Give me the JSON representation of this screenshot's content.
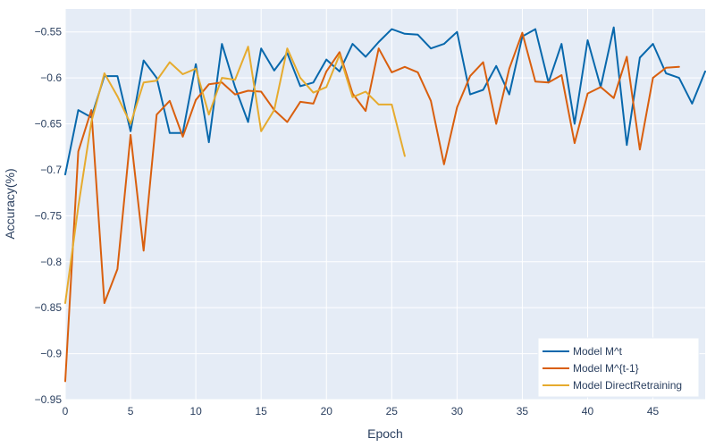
{
  "chart_data": {
    "type": "line",
    "title": "",
    "xlabel": "Epoch",
    "ylabel": "Accuracy(%)",
    "xlim": [
      0,
      49
    ],
    "ylim": [
      -0.95,
      -0.525
    ],
    "xticks": [
      0,
      5,
      10,
      15,
      20,
      25,
      30,
      35,
      40,
      45
    ],
    "yticks": [
      -0.95,
      -0.9,
      -0.85,
      -0.8,
      -0.75,
      -0.7,
      -0.65,
      -0.6,
      -0.55
    ],
    "grid": true,
    "legend_position": "bottom-right",
    "colors": {
      "plot_bg": "#e5ecf6",
      "grid": "#ffffff"
    },
    "series": [
      {
        "name": "Model M^t",
        "color": "#0868ac",
        "x": [
          0,
          1,
          2,
          3,
          4,
          5,
          6,
          7,
          8,
          9,
          10,
          11,
          12,
          13,
          14,
          15,
          16,
          17,
          18,
          19,
          20,
          21,
          22,
          23,
          24,
          25,
          26,
          27,
          28,
          29,
          30,
          31,
          32,
          33,
          34,
          35,
          36,
          37,
          38,
          39,
          40,
          41,
          42,
          43,
          44,
          45,
          46,
          47,
          48,
          49
        ],
        "y": [
          -0.705,
          -0.635,
          -0.643,
          -0.598,
          -0.598,
          -0.658,
          -0.581,
          -0.6,
          -0.66,
          -0.66,
          -0.585,
          -0.67,
          -0.563,
          -0.61,
          -0.648,
          -0.568,
          -0.592,
          -0.573,
          -0.609,
          -0.605,
          -0.58,
          -0.593,
          -0.563,
          -0.577,
          -0.561,
          -0.547,
          -0.552,
          -0.553,
          -0.568,
          -0.563,
          -0.55,
          -0.618,
          -0.613,
          -0.587,
          -0.618,
          -0.555,
          -0.547,
          -0.605,
          -0.563,
          -0.65,
          -0.559,
          -0.61,
          -0.545,
          -0.673,
          -0.578,
          -0.563,
          -0.595,
          -0.6,
          -0.628,
          -0.593
        ]
      },
      {
        "name": "Model M^{t-1}",
        "color": "#d95f0e",
        "x": [
          0,
          1,
          2,
          3,
          4,
          5,
          6,
          7,
          8,
          9,
          10,
          11,
          12,
          13,
          14,
          15,
          16,
          17,
          18,
          19,
          20,
          21,
          22,
          23,
          24,
          25,
          26,
          27,
          28,
          29,
          30,
          31,
          32,
          33,
          34,
          35,
          36,
          37,
          38,
          39,
          40,
          41,
          42,
          43,
          44,
          45,
          46,
          47
        ],
        "y": [
          -0.93,
          -0.68,
          -0.635,
          -0.845,
          -0.808,
          -0.662,
          -0.788,
          -0.64,
          -0.625,
          -0.664,
          -0.624,
          -0.607,
          -0.605,
          -0.618,
          -0.614,
          -0.615,
          -0.635,
          -0.648,
          -0.626,
          -0.628,
          -0.593,
          -0.572,
          -0.617,
          -0.636,
          -0.568,
          -0.594,
          -0.588,
          -0.594,
          -0.625,
          -0.694,
          -0.632,
          -0.598,
          -0.583,
          -0.65,
          -0.59,
          -0.551,
          -0.604,
          -0.605,
          -0.597,
          -0.671,
          -0.617,
          -0.61,
          -0.622,
          -0.577,
          -0.678,
          -0.6,
          -0.589,
          -0.588
        ]
      },
      {
        "name": "Model DirectRetraining",
        "color": "#e6ab2e",
        "x": [
          0,
          1,
          2,
          3,
          4,
          5,
          6,
          7,
          8,
          9,
          10,
          11,
          12,
          13,
          14,
          15,
          16,
          17,
          18,
          19,
          20,
          21,
          22,
          23,
          24,
          25,
          26
        ],
        "y": [
          -0.845,
          -0.74,
          -0.648,
          -0.595,
          -0.62,
          -0.65,
          -0.605,
          -0.603,
          -0.583,
          -0.596,
          -0.59,
          -0.64,
          -0.6,
          -0.602,
          -0.566,
          -0.658,
          -0.635,
          -0.568,
          -0.6,
          -0.616,
          -0.61,
          -0.575,
          -0.621,
          -0.615,
          -0.629,
          -0.629,
          -0.685
        ]
      }
    ]
  }
}
